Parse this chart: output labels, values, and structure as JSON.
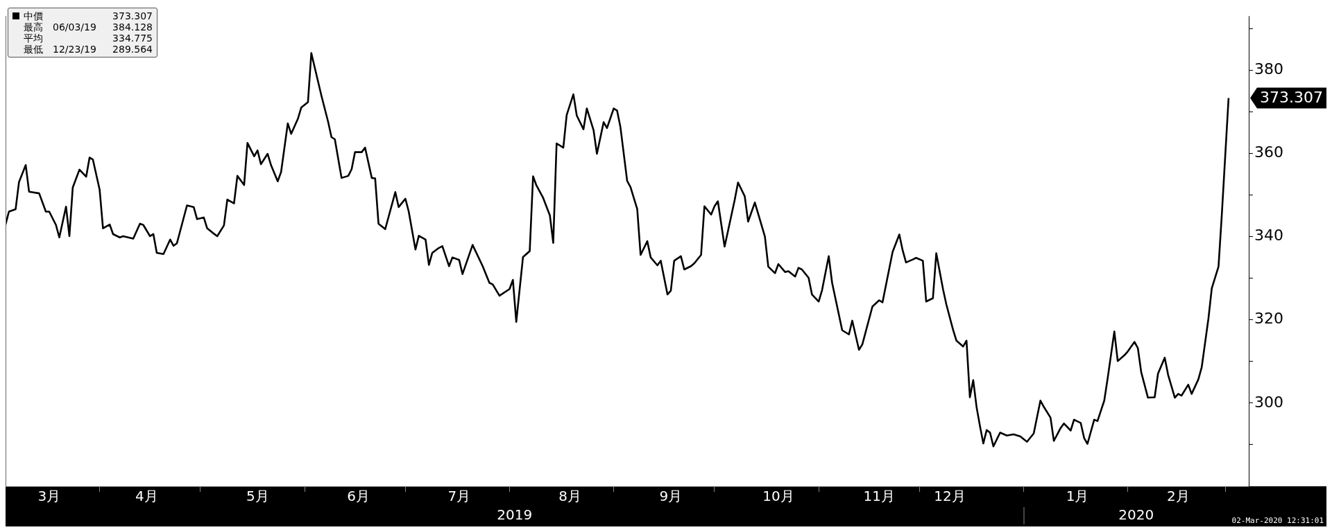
{
  "chart_data": {
    "type": "line",
    "x": [
      "2019-03-04",
      "2019-03-05",
      "2019-03-07",
      "2019-03-08",
      "2019-03-10",
      "2019-03-11",
      "2019-03-14",
      "2019-03-16",
      "2019-03-17",
      "2019-03-19",
      "2019-03-20",
      "2019-03-22",
      "2019-03-23",
      "2019-03-24",
      "2019-03-26",
      "2019-03-28",
      "2019-03-29",
      "2019-03-30",
      "2019-04-01",
      "2019-04-02",
      "2019-04-04",
      "2019-04-05",
      "2019-04-07",
      "2019-04-08",
      "2019-04-11",
      "2019-04-13",
      "2019-04-14",
      "2019-04-16",
      "2019-04-17",
      "2019-04-18",
      "2019-04-20",
      "2019-04-22",
      "2019-04-23",
      "2019-04-24",
      "2019-04-27",
      "2019-04-29",
      "2019-04-30",
      "2019-05-02",
      "2019-05-03",
      "2019-05-05",
      "2019-05-06",
      "2019-05-08",
      "2019-05-09",
      "2019-05-11",
      "2019-05-12",
      "2019-05-14",
      "2019-05-15",
      "2019-05-17",
      "2019-05-18",
      "2019-05-19",
      "2019-05-21",
      "2019-05-22",
      "2019-05-24",
      "2019-05-25",
      "2019-05-27",
      "2019-05-28",
      "2019-05-30",
      "2019-05-31",
      "2019-06-02",
      "2019-06-03",
      "2019-06-06",
      "2019-06-08",
      "2019-06-09",
      "2019-06-10",
      "2019-06-12",
      "2019-06-14",
      "2019-06-15",
      "2019-06-16",
      "2019-06-18",
      "2019-06-19",
      "2019-06-21",
      "2019-06-22",
      "2019-06-23",
      "2019-06-25",
      "2019-06-28",
      "2019-06-29",
      "2019-07-01",
      "2019-07-02",
      "2019-07-04",
      "2019-07-05",
      "2019-07-07",
      "2019-07-08",
      "2019-07-09",
      "2019-07-11",
      "2019-07-12",
      "2019-07-14",
      "2019-07-15",
      "2019-07-17",
      "2019-07-18",
      "2019-07-21",
      "2019-07-24",
      "2019-07-26",
      "2019-07-27",
      "2019-07-29",
      "2019-08-01",
      "2019-08-02",
      "2019-08-03",
      "2019-08-05",
      "2019-08-07",
      "2019-08-08",
      "2019-08-09",
      "2019-08-11",
      "2019-08-13",
      "2019-08-14",
      "2019-08-15",
      "2019-08-17",
      "2019-08-18",
      "2019-08-20",
      "2019-08-21",
      "2019-08-23",
      "2019-08-24",
      "2019-08-26",
      "2019-08-27",
      "2019-08-29",
      "2019-08-30",
      "2019-09-01",
      "2019-09-02",
      "2019-09-03",
      "2019-09-05",
      "2019-09-06",
      "2019-09-08",
      "2019-09-09",
      "2019-09-11",
      "2019-09-12",
      "2019-09-14",
      "2019-09-15",
      "2019-09-17",
      "2019-09-18",
      "2019-09-19",
      "2019-09-21",
      "2019-09-22",
      "2019-09-24",
      "2019-09-25",
      "2019-09-27",
      "2019-09-28",
      "2019-09-30",
      "2019-10-01",
      "2019-10-02",
      "2019-10-04",
      "2019-10-05",
      "2019-10-07",
      "2019-10-08",
      "2019-10-10",
      "2019-10-11",
      "2019-10-13",
      "2019-10-14",
      "2019-10-16",
      "2019-10-17",
      "2019-10-19",
      "2019-10-20",
      "2019-10-22",
      "2019-10-23",
      "2019-10-25",
      "2019-10-26",
      "2019-10-27",
      "2019-10-29",
      "2019-10-30",
      "2019-11-01",
      "2019-11-02",
      "2019-11-04",
      "2019-11-05",
      "2019-11-08",
      "2019-11-10",
      "2019-11-11",
      "2019-11-13",
      "2019-11-14",
      "2019-11-17",
      "2019-11-19",
      "2019-11-20",
      "2019-11-23",
      "2019-11-25",
      "2019-11-26",
      "2019-11-27",
      "2019-11-29",
      "2019-11-30",
      "2019-12-02",
      "2019-12-03",
      "2019-12-05",
      "2019-12-06",
      "2019-12-08",
      "2019-12-09",
      "2019-12-11",
      "2019-12-12",
      "2019-12-14",
      "2019-12-15",
      "2019-12-16",
      "2019-12-17",
      "2019-12-18",
      "2019-12-19",
      "2019-12-20",
      "2019-12-21",
      "2019-12-22",
      "2019-12-23",
      "2019-12-25",
      "2019-12-27",
      "2019-12-29",
      "2019-12-31",
      "2020-01-02",
      "2020-01-04",
      "2020-01-06",
      "2020-01-07",
      "2020-01-09",
      "2020-01-10",
      "2020-01-12",
      "2020-01-13",
      "2020-01-15",
      "2020-01-16",
      "2020-01-18",
      "2020-01-19",
      "2020-01-20",
      "2020-01-22",
      "2020-01-23",
      "2020-01-25",
      "2020-01-26",
      "2020-01-28",
      "2020-01-29",
      "2020-01-31",
      "2020-02-01",
      "2020-02-03",
      "2020-02-04",
      "2020-02-05",
      "2020-02-07",
      "2020-02-09",
      "2020-02-10",
      "2020-02-12",
      "2020-02-13",
      "2020-02-15",
      "2020-02-16",
      "2020-02-17",
      "2020-02-19",
      "2020-02-20",
      "2020-02-22",
      "2020-02-23",
      "2020-02-25",
      "2020-02-26",
      "2020-02-28",
      "2020-02-29",
      "2020-03-02"
    ],
    "series": [
      {
        "color": "#000000",
        "values": [
          342.9,
          346.0,
          346.6,
          353.1,
          357.2,
          350.8,
          350.4,
          346.0,
          346.0,
          342.8,
          339.8,
          347.2,
          340.1,
          351.8,
          356.1,
          354.4,
          359.0,
          358.5,
          351.3,
          342.0,
          342.9,
          340.6,
          339.8,
          340.1,
          339.5,
          343.1,
          342.8,
          340.1,
          340.6,
          336.1,
          335.8,
          339.3,
          337.8,
          338.4,
          347.5,
          347.1,
          344.2,
          344.6,
          342.0,
          340.7,
          340.1,
          342.7,
          348.9,
          348.0,
          354.6,
          352.4,
          362.5,
          359.3,
          360.7,
          357.4,
          359.9,
          357.2,
          353.3,
          355.5,
          367.2,
          364.7,
          368.3,
          371.0,
          372.3,
          384.1,
          373.9,
          367.6,
          363.9,
          363.4,
          354.1,
          354.6,
          356.2,
          360.3,
          360.3,
          361.4,
          354.1,
          354.0,
          343.1,
          341.8,
          350.7,
          347.1,
          349.1,
          346.0,
          336.9,
          340.2,
          339.3,
          333.2,
          336.1,
          337.3,
          337.7,
          332.9,
          335.0,
          334.4,
          331.0,
          338.0,
          332.9,
          328.9,
          328.5,
          325.8,
          327.4,
          329.6,
          319.5,
          335.1,
          336.5,
          354.5,
          352.3,
          349.3,
          345.1,
          338.5,
          362.4,
          361.4,
          369.2,
          374.2,
          369.1,
          365.8,
          370.8,
          365.6,
          359.9,
          367.5,
          366.1,
          370.8,
          370.3,
          366.3,
          353.4,
          351.9,
          346.6,
          335.6,
          338.9,
          335.0,
          333.1,
          334.2,
          326.1,
          327.0,
          334.2,
          335.3,
          332.1,
          332.9,
          333.6,
          335.6,
          347.3,
          345.3,
          347.3,
          348.5,
          337.6,
          341.3,
          348.8,
          353.0,
          349.7,
          343.6,
          348.2,
          345.5,
          340.0,
          332.8,
          331.2,
          333.4,
          331.5,
          331.7,
          330.4,
          332.5,
          332.1,
          330.1,
          326.1,
          324.4,
          327.1,
          335.3,
          328.9,
          317.5,
          316.5,
          319.8,
          312.8,
          314.1,
          323.2,
          324.7,
          324.2,
          336.3,
          340.5,
          336.7,
          333.8,
          334.5,
          334.9,
          334.2,
          324.4,
          325.2,
          336.0,
          327.4,
          323.7,
          317.6,
          315.0,
          313.6,
          315.0,
          301.4,
          305.5,
          299.0,
          294.5,
          290.3,
          293.5,
          292.9,
          289.6,
          292.9,
          292.2,
          292.5,
          292.0,
          290.7,
          292.7,
          300.6,
          299.1,
          296.5,
          290.9,
          294.0,
          295.1,
          293.4,
          296.0,
          295.2,
          291.6,
          290.2,
          296.0,
          295.7,
          300.6,
          305.9,
          317.2,
          310.1,
          311.5,
          312.4,
          314.7,
          313.2,
          307.4,
          301.3,
          301.4,
          307.1,
          310.9,
          306.8,
          301.3,
          302.2,
          301.8,
          304.4,
          302.2,
          305.7,
          308.6,
          320.3,
          327.6,
          332.8,
          345.5,
          373.3
        ]
      }
    ],
    "xlim": [
      "2019-03-04",
      "2020-03-08"
    ],
    "xticks": [
      {
        "value": "2019-03-17",
        "label": "3月"
      },
      {
        "value": "2019-04-01",
        "label": null
      },
      {
        "value": "2019-04-15",
        "label": "4月"
      },
      {
        "value": "2019-05-01",
        "label": null
      },
      {
        "value": "2019-05-18",
        "label": "5月"
      },
      {
        "value": "2019-06-01",
        "label": null
      },
      {
        "value": "2019-06-17",
        "label": "6月"
      },
      {
        "value": "2019-07-01",
        "label": null
      },
      {
        "value": "2019-07-17",
        "label": "7月"
      },
      {
        "value": "2019-08-01",
        "label": null
      },
      {
        "value": "2019-08-19",
        "label": "8月"
      },
      {
        "value": "2019-09-01",
        "label": null
      },
      {
        "value": "2019-09-18",
        "label": "9月"
      },
      {
        "value": "2019-10-01",
        "label": null
      },
      {
        "value": "2019-10-20",
        "label": "10月"
      },
      {
        "value": "2019-11-01",
        "label": null
      },
      {
        "value": "2019-11-19",
        "label": "11月"
      },
      {
        "value": "2019-12-01",
        "label": null
      },
      {
        "value": "2019-12-10",
        "label": "12月"
      },
      {
        "value": "2020-01-01",
        "label": null
      },
      {
        "value": "2020-01-17",
        "label": "1月"
      },
      {
        "value": "2020-02-01",
        "label": null
      },
      {
        "value": "2020-02-16",
        "label": "2月"
      },
      {
        "value": "2020-03-01",
        "label": null
      }
    ],
    "ylim": [
      280,
      393
    ],
    "yticks": [
      {
        "value": 290,
        "label": null
      },
      300,
      {
        "value": 310,
        "label": null
      },
      320,
      {
        "value": 330,
        "label": null
      },
      340,
      {
        "value": 350,
        "label": null
      },
      360,
      {
        "value": 370,
        "label": null
      },
      380,
      {
        "value": 390,
        "label": null
      }
    ],
    "grid": false,
    "marker": "none",
    "line_style": "solid",
    "annotations": [
      "中價 373.307",
      "最高 06/03/19 384.128",
      "平均 334.775",
      "最低 12/23/19 289.564",
      "2019",
      "2020",
      "373.307",
      "02-Mar-2020 12:31:01"
    ]
  }
}
